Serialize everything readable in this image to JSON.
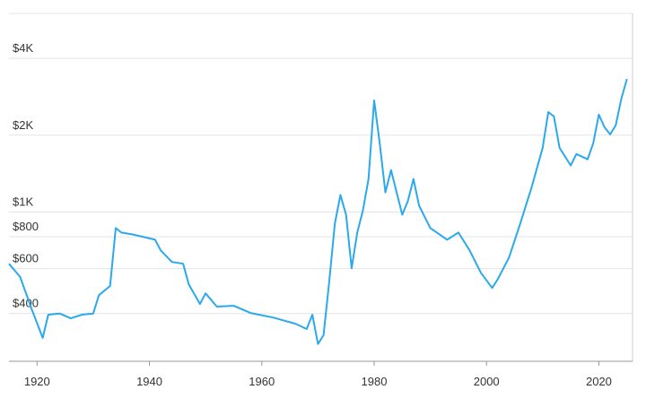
{
  "chart_data": {
    "type": "line",
    "log_scale": true,
    "grid": true,
    "color": "#2aa9ec",
    "xlim": [
      1915,
      2026
    ],
    "xticks": [
      1920,
      1940,
      1960,
      1980,
      2000,
      2020
    ],
    "ylim": [
      260,
      6000
    ],
    "yticks": [
      {
        "value": 400,
        "label": "$400"
      },
      {
        "value": 600,
        "label": "$600"
      },
      {
        "value": 800,
        "label": "$800"
      },
      {
        "value": 1000,
        "label": "$1K"
      },
      {
        "value": 2000,
        "label": "$2K"
      },
      {
        "value": 4000,
        "label": "$4K"
      }
    ],
    "x": [
      1915,
      1917,
      1919,
      1921,
      1922,
      1924,
      1926,
      1928,
      1930,
      1931,
      1933,
      1934,
      1935,
      1937,
      1939,
      1941,
      1942,
      1944,
      1946,
      1947,
      1949,
      1950,
      1952,
      1955,
      1958,
      1962,
      1966,
      1968,
      1969,
      1970,
      1971,
      1972,
      1973,
      1974,
      1975,
      1976,
      1977,
      1978,
      1979,
      1980,
      1981,
      1982,
      1983,
      1985,
      1986,
      1987,
      1988,
      1990,
      1993,
      1995,
      1997,
      1999,
      2001,
      2002,
      2004,
      2006,
      2008,
      2010,
      2011,
      2012,
      2013,
      2015,
      2016,
      2018,
      2019,
      2020,
      2021,
      2022,
      2023,
      2024,
      2025
    ],
    "values": [
      627,
      556,
      419,
      321,
      396,
      400,
      383,
      396,
      400,
      472,
      513,
      865,
      831,
      817,
      798,
      779,
      707,
      637,
      627,
      520,
      436,
      480,
      426,
      429,
      402,
      386,
      365,
      348,
      396,
      304,
      329,
      533,
      901,
      1166,
      976,
      602,
      831,
      1016,
      1347,
      2738,
      1861,
      1194,
      1460,
      976,
      1102,
      1347,
      1058,
      865,
      779,
      831,
      707,
      578,
      504,
      545,
      663,
      901,
      1243,
      1786,
      2465,
      2370,
      1786,
      1521,
      1688,
      1609,
      1861,
      2408,
      2150,
      2015,
      2185,
      2781,
      3322
    ]
  }
}
